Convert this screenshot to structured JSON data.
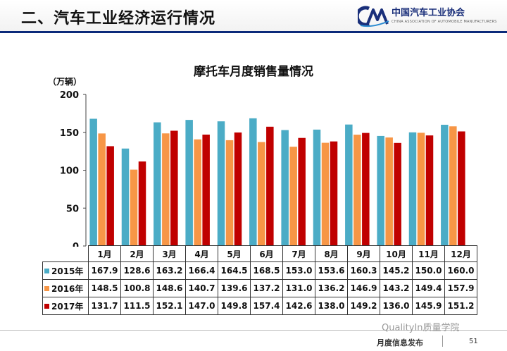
{
  "header": {
    "section_title": "二、汽车工业经济运行情况",
    "org_name": "中国汽车工业协会",
    "org_sub": "CHINA ASSOCIATION OF AUTOMOBILE MANUFACTURERS",
    "logo_text": "CM"
  },
  "chart_data": {
    "type": "bar",
    "title": "摩托车月度销售量情况",
    "unit": "（万辆）",
    "categories": [
      "1月",
      "2月",
      "3月",
      "4月",
      "5月",
      "6月",
      "7月",
      "8月",
      "9月",
      "10月",
      "11月",
      "12月"
    ],
    "ylim": [
      0,
      200
    ],
    "yticks": [
      0,
      50,
      100,
      150,
      200
    ],
    "series": [
      {
        "name": "2015年",
        "color": "#4bacc6",
        "values": [
          167.9,
          128.6,
          163.2,
          166.4,
          164.5,
          168.5,
          153.0,
          153.6,
          160.3,
          145.2,
          150.0,
          160.0
        ],
        "labels": [
          "167.9",
          "128.6",
          "163.2",
          "166.4",
          "164.5",
          "168.5",
          "153.0",
          "153.6",
          "160.3",
          "145.2",
          "150.0",
          "160.0"
        ]
      },
      {
        "name": "2016年",
        "color": "#f79646",
        "values": [
          148.5,
          100.8,
          148.6,
          140.7,
          139.6,
          137.2,
          131.0,
          136.2,
          146.9,
          143.2,
          149.4,
          157.9
        ],
        "labels": [
          "148.5",
          "100.8",
          "148.6",
          "140.7",
          "139.6",
          "137.2",
          "131.0",
          "136.2",
          "146.9",
          "143.2",
          "149.4",
          "157.9"
        ]
      },
      {
        "name": "2017年",
        "color": "#c00000",
        "values": [
          131.7,
          111.5,
          152.1,
          147.0,
          149.8,
          157.4,
          142.6,
          138.0,
          149.2,
          136.0,
          145.9,
          151.2
        ],
        "labels": [
          "131.7",
          "111.5",
          "152.1",
          "147.0",
          "149.8",
          "157.4",
          "142.6",
          "138.0",
          "149.2",
          "136.0",
          "145.9",
          "151.2"
        ]
      }
    ]
  },
  "footer": {
    "watermark": "QualityIn质量学院",
    "text": "月度信息发布",
    "page": "51"
  }
}
